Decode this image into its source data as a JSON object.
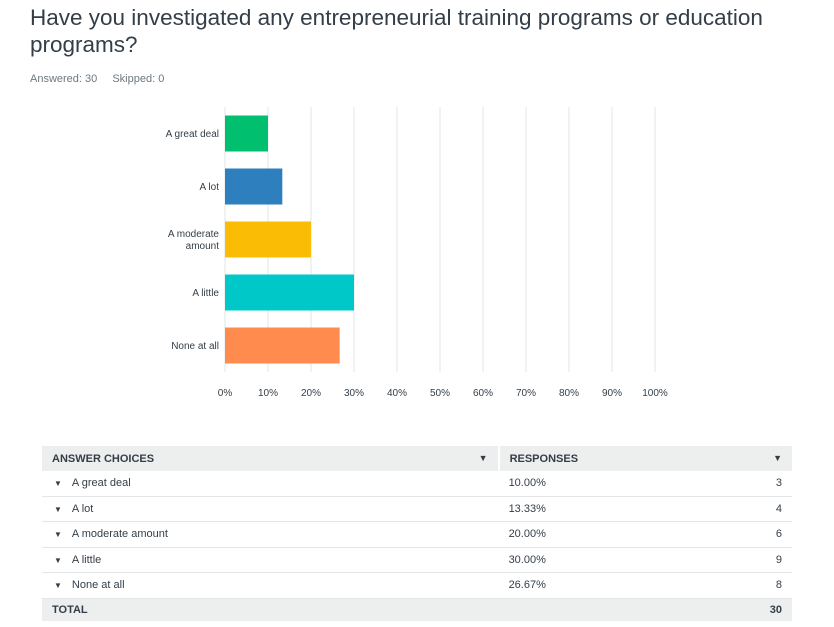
{
  "question": {
    "title": "Have you investigated any entrepreneurial training programs or education programs?",
    "answered_label": "Answered: 30",
    "skipped_label": "Skipped: 0"
  },
  "colors": {
    "series": [
      "#00bf6f",
      "#2d7fbe",
      "#fbbc05",
      "#00c8c8",
      "#ff8b4f"
    ],
    "grid": "#e3e5e6"
  },
  "chart_data": {
    "type": "bar",
    "orientation": "horizontal",
    "categories": [
      "A great deal",
      "A lot",
      "A moderate amount",
      "A little",
      "None at all"
    ],
    "category_display_lines": [
      [
        "A great deal"
      ],
      [
        "A lot"
      ],
      [
        "A moderate",
        "amount"
      ],
      [
        "A little"
      ],
      [
        "None at all"
      ]
    ],
    "values": [
      10.0,
      13.33,
      20.0,
      30.0,
      26.67
    ],
    "xlim": [
      0,
      100
    ],
    "xticks": [
      "0%",
      "10%",
      "20%",
      "30%",
      "40%",
      "50%",
      "60%",
      "70%",
      "80%",
      "90%",
      "100%"
    ],
    "grid": true,
    "legend": "none"
  },
  "table": {
    "headers": {
      "choice": "ANSWER CHOICES",
      "responses": "RESPONSES"
    },
    "rows": [
      {
        "choice": "A great deal",
        "percent": "10.00%",
        "count": "3"
      },
      {
        "choice": "A lot",
        "percent": "13.33%",
        "count": "4"
      },
      {
        "choice": "A moderate amount",
        "percent": "20.00%",
        "count": "6"
      },
      {
        "choice": "A little",
        "percent": "30.00%",
        "count": "9"
      },
      {
        "choice": "None at all",
        "percent": "26.67%",
        "count": "8"
      }
    ],
    "total_label": "TOTAL",
    "total_count": "30"
  }
}
